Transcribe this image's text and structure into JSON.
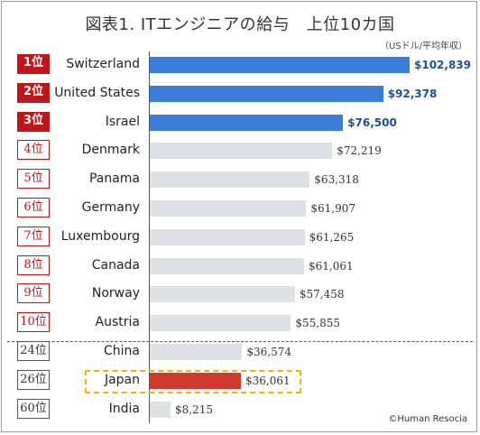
{
  "title": "図表1. ITエンジニアの給与　上位10カ国",
  "subtitle": "（USドル/平均年収）",
  "footer": "©Human Resocia",
  "colors": {
    "top_bar": "#3b7dd8",
    "other_bar": "#dde1e6",
    "highlight_bar": "#d03a2e",
    "rank_red": "#c0151b",
    "top_value": "#1f4e99",
    "highlight_box": "#f2b400"
  },
  "chart_data": {
    "type": "bar",
    "orientation": "horizontal",
    "categories": [
      "Switzerland",
      "United States",
      "Israel",
      "Denmark",
      "Panama",
      "Germany",
      "Luxembourg",
      "Canada",
      "Norway",
      "Austria",
      "China",
      "Japan",
      "India"
    ],
    "ranks": [
      "1位",
      "2位",
      "3位",
      "4位",
      "5位",
      "6位",
      "7位",
      "8位",
      "9位",
      "10位",
      "24位",
      "26位",
      "60位"
    ],
    "values": [
      102839,
      92378,
      76500,
      72219,
      63318,
      61907,
      61265,
      61061,
      57458,
      55855,
      36574,
      36061,
      8215
    ],
    "value_labels": [
      "$102,839",
      "$92,378",
      "$76,500",
      "$72,219",
      "$63,318",
      "$61,907",
      "$61,265",
      "$61,061",
      "$57,458",
      "$55,855",
      "$36,574",
      "$36,061",
      "$8,215"
    ],
    "highlighted_category": "Japan",
    "xlim": [
      0,
      102839
    ]
  }
}
